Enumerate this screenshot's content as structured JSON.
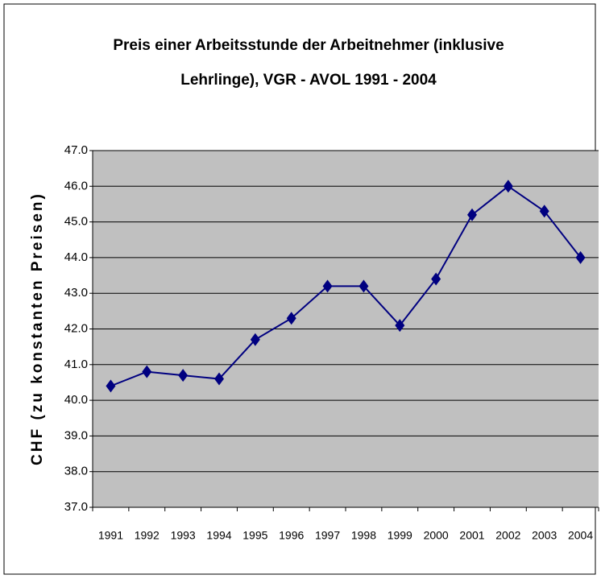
{
  "chart_data": {
    "type": "line",
    "title": [
      "Preis einer Arbeitsstunde der Arbeitnehmer (inklusive",
      "Lehrlinge), VGR - AVOL 1991 - 2004"
    ],
    "y_label": "CHF (zu konstanten Preisen)",
    "categories": [
      "1991",
      "1992",
      "1993",
      "1994",
      "1995",
      "1996",
      "1997",
      "1998",
      "1999",
      "2000",
      "2001",
      "2002",
      "2003",
      "2004"
    ],
    "series": [
      {
        "name": "Preis einer Arbeitsstunde",
        "color": "#000080",
        "values": [
          40.4,
          40.8,
          40.7,
          40.6,
          41.7,
          42.3,
          43.2,
          43.2,
          42.1,
          43.4,
          45.2,
          46.0,
          45.3,
          44.0
        ]
      }
    ],
    "ylim": [
      37,
      47
    ],
    "yticks": [
      {
        "value": 37,
        "label": "37.0"
      },
      {
        "value": 38,
        "label": "38.0"
      },
      {
        "value": 39,
        "label": "39.0"
      },
      {
        "value": 40,
        "label": "40.0"
      },
      {
        "value": 41,
        "label": "41.0"
      },
      {
        "value": 42,
        "label": "42.0"
      },
      {
        "value": 43,
        "label": "43.0"
      },
      {
        "value": 44,
        "label": "44.0"
      },
      {
        "value": 45,
        "label": "45.0"
      },
      {
        "value": 46,
        "label": "46.0"
      },
      {
        "value": 47,
        "label": "47.0"
      }
    ],
    "grid": true
  }
}
